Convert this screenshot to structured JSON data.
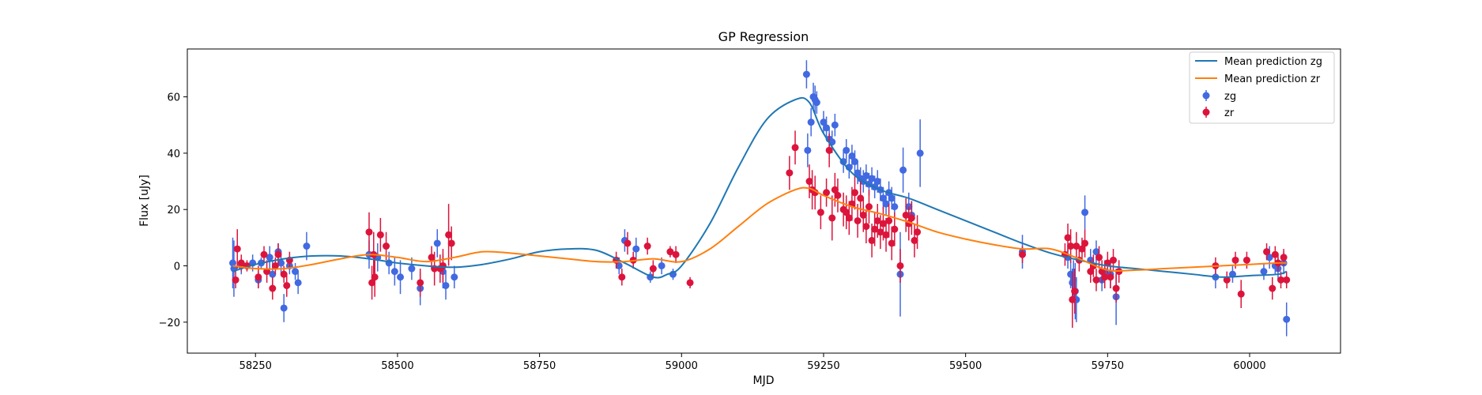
{
  "chart_data": {
    "type": "scatter",
    "title": "GP Regression",
    "xlabel": "MJD",
    "ylabel": "Flux [uJy]",
    "xlim": [
      58130,
      60160
    ],
    "ylim": [
      -31,
      77
    ],
    "xticks": [
      58250,
      58500,
      58750,
      59000,
      59250,
      59500,
      59750,
      60000
    ],
    "yticks": [
      -20,
      0,
      20,
      40,
      60
    ],
    "xtick_labels": [
      "58250",
      "58500",
      "58750",
      "59000",
      "59250",
      "59500",
      "59750",
      "60000"
    ],
    "ytick_labels": [
      "−20",
      "0",
      "20",
      "40",
      "60"
    ],
    "legend": {
      "placement": "top-right",
      "entries": [
        "Mean prediction zg",
        "Mean prediction zr",
        "zg",
        "zr"
      ]
    },
    "lines": [
      {
        "name": "Mean prediction zg",
        "color": "#1f77b4",
        "x": [
          58210,
          58250,
          58300,
          58350,
          58400,
          58450,
          58500,
          58550,
          58600,
          58650,
          58700,
          58750,
          58800,
          58850,
          58900,
          58950,
          58975,
          59000,
          59050,
          59100,
          59150,
          59200,
          59225,
          59250,
          59300,
          59350,
          59400,
          59450,
          59500,
          59550,
          59600,
          59650,
          59700,
          59750,
          59800,
          59850,
          59900,
          59950,
          60000,
          60050,
          60065
        ],
        "y": [
          -2,
          0.5,
          2.5,
          3.5,
          3.5,
          2.5,
          1,
          0,
          -0.5,
          0.5,
          2.5,
          5,
          6,
          5.5,
          1,
          -4,
          -3,
          0,
          15,
          35,
          52,
          59,
          58,
          47,
          33,
          27,
          24,
          20,
          16,
          12,
          8,
          4.5,
          2,
          0,
          -1,
          -2,
          -3,
          -4,
          -3.5,
          -3,
          -2
        ]
      },
      {
        "name": "Mean prediction zr",
        "color": "#ff7f0e",
        "x": [
          58210,
          58250,
          58300,
          58350,
          58400,
          58450,
          58500,
          58550,
          58600,
          58650,
          58700,
          58750,
          58800,
          58850,
          58900,
          58950,
          59000,
          59050,
          59100,
          59150,
          59200,
          59225,
          59250,
          59300,
          59350,
          59400,
          59450,
          59500,
          59550,
          59600,
          59650,
          59700,
          59750,
          59800,
          59850,
          59900,
          59950,
          60000,
          60050,
          60065
        ],
        "y": [
          0,
          -1,
          -1,
          0.5,
          2.5,
          4,
          3,
          1.5,
          3,
          5,
          4.5,
          3.5,
          2.5,
          1.5,
          1.5,
          2.5,
          1.5,
          6,
          14,
          22,
          27,
          27.5,
          25,
          21,
          18.5,
          15.5,
          12,
          9.5,
          7.5,
          6,
          6,
          2.5,
          -1.5,
          -1.5,
          -1,
          -0.5,
          0,
          0.5,
          1,
          1
        ]
      }
    ],
    "series": [
      {
        "name": "zg",
        "color": "#4169e1",
        "points": [
          [
            58210,
            1,
            9
          ],
          [
            58212,
            -1,
            10
          ],
          [
            58225,
            0,
            3
          ],
          [
            58245,
            1,
            3
          ],
          [
            58255,
            -5,
            3
          ],
          [
            58260,
            1,
            2
          ],
          [
            58275,
            3,
            4
          ],
          [
            58280,
            -3,
            5
          ],
          [
            58290,
            5,
            3
          ],
          [
            58295,
            1,
            4
          ],
          [
            58300,
            -15,
            5
          ],
          [
            58310,
            0,
            3
          ],
          [
            58320,
            -2,
            3
          ],
          [
            58325,
            -6,
            4
          ],
          [
            58340,
            7,
            5
          ],
          [
            58450,
            4,
            5
          ],
          [
            58465,
            3,
            5
          ],
          [
            58485,
            1,
            4
          ],
          [
            58495,
            -2,
            5
          ],
          [
            58505,
            -4,
            6
          ],
          [
            58525,
            -1,
            4
          ],
          [
            58540,
            -8,
            6
          ],
          [
            58570,
            8,
            5
          ],
          [
            58580,
            -2,
            6
          ],
          [
            58585,
            -7,
            5
          ],
          [
            58600,
            -4,
            4
          ],
          [
            58890,
            0,
            3
          ],
          [
            58900,
            9,
            4
          ],
          [
            58920,
            6,
            4
          ],
          [
            58945,
            -4,
            2
          ],
          [
            58965,
            0,
            3
          ],
          [
            58985,
            -3,
            2
          ],
          [
            59220,
            68,
            5
          ],
          [
            59222,
            41,
            6
          ],
          [
            59228,
            51,
            5
          ],
          [
            59232,
            60,
            5
          ],
          [
            59235,
            59,
            5
          ],
          [
            59238,
            58,
            4
          ],
          [
            59250,
            51,
            4
          ],
          [
            59255,
            49,
            4
          ],
          [
            59260,
            45,
            4
          ],
          [
            59265,
            44,
            4
          ],
          [
            59270,
            50,
            4
          ],
          [
            59285,
            37,
            4
          ],
          [
            59290,
            41,
            4
          ],
          [
            59295,
            35,
            4
          ],
          [
            59300,
            39,
            4
          ],
          [
            59305,
            37,
            4
          ],
          [
            59310,
            33,
            4
          ],
          [
            59315,
            31,
            4
          ],
          [
            59320,
            30,
            4
          ],
          [
            59325,
            32,
            4
          ],
          [
            59330,
            29,
            4
          ],
          [
            59335,
            31,
            4
          ],
          [
            59340,
            28,
            4
          ],
          [
            59345,
            30,
            4
          ],
          [
            59350,
            27,
            4
          ],
          [
            59355,
            24,
            4
          ],
          [
            59360,
            22,
            4
          ],
          [
            59365,
            26,
            4
          ],
          [
            59370,
            24,
            4
          ],
          [
            59375,
            21,
            4
          ],
          [
            59385,
            -3,
            15
          ],
          [
            59390,
            34,
            8
          ],
          [
            59400,
            21,
            5
          ],
          [
            59405,
            18,
            5
          ],
          [
            59420,
            40,
            12
          ],
          [
            59600,
            5,
            6
          ],
          [
            59680,
            3,
            4
          ],
          [
            59685,
            -3,
            5
          ],
          [
            59688,
            -6,
            5
          ],
          [
            59690,
            -5,
            7
          ],
          [
            59693,
            -9,
            10
          ],
          [
            59695,
            -12,
            8
          ],
          [
            59710,
            19,
            6
          ],
          [
            59720,
            2,
            4
          ],
          [
            59730,
            5,
            4
          ],
          [
            59740,
            -5,
            4
          ],
          [
            59745,
            -2,
            4
          ],
          [
            59755,
            -3,
            5
          ],
          [
            59765,
            -11,
            10
          ],
          [
            59940,
            -4,
            4
          ],
          [
            59970,
            -3,
            3
          ],
          [
            60025,
            -2,
            3
          ],
          [
            60035,
            3,
            4
          ],
          [
            60045,
            0,
            3
          ],
          [
            60050,
            -1,
            4
          ],
          [
            60060,
            1,
            4
          ],
          [
            60065,
            -19,
            6
          ]
        ]
      },
      {
        "name": "zr",
        "color": "#dc143c",
        "points": [
          [
            58215,
            -5,
            3
          ],
          [
            58218,
            6,
            7
          ],
          [
            58225,
            1,
            3
          ],
          [
            58235,
            0,
            2
          ],
          [
            58255,
            -4,
            4
          ],
          [
            58265,
            4,
            3
          ],
          [
            58270,
            -2,
            4
          ],
          [
            58280,
            -8,
            4
          ],
          [
            58285,
            0,
            3
          ],
          [
            58290,
            4,
            4
          ],
          [
            58300,
            -3,
            3
          ],
          [
            58305,
            -7,
            4
          ],
          [
            58310,
            2,
            3
          ],
          [
            58450,
            12,
            7
          ],
          [
            58455,
            -6,
            6
          ],
          [
            58458,
            4,
            8
          ],
          [
            58460,
            -4,
            7
          ],
          [
            58470,
            11,
            6
          ],
          [
            58480,
            7,
            5
          ],
          [
            58540,
            -6,
            5
          ],
          [
            58560,
            3,
            4
          ],
          [
            58565,
            -1,
            6
          ],
          [
            58575,
            -1,
            5
          ],
          [
            58580,
            0,
            6
          ],
          [
            58590,
            11,
            11
          ],
          [
            58595,
            8,
            6
          ],
          [
            58885,
            2,
            3
          ],
          [
            58895,
            -4,
            3
          ],
          [
            58905,
            8,
            4
          ],
          [
            58915,
            2,
            3
          ],
          [
            58940,
            7,
            3
          ],
          [
            58950,
            -1,
            3
          ],
          [
            58980,
            5,
            2
          ],
          [
            58990,
            4,
            3
          ],
          [
            59015,
            -6,
            2
          ],
          [
            59190,
            33,
            6
          ],
          [
            59200,
            42,
            6
          ],
          [
            59225,
            30,
            6
          ],
          [
            59230,
            27,
            7
          ],
          [
            59235,
            26,
            6
          ],
          [
            59245,
            19,
            6
          ],
          [
            59255,
            26,
            5
          ],
          [
            59260,
            41,
            6
          ],
          [
            59265,
            17,
            8
          ],
          [
            59270,
            27,
            6
          ],
          [
            59275,
            25,
            6
          ],
          [
            59285,
            20,
            6
          ],
          [
            59290,
            19,
            6
          ],
          [
            59295,
            17,
            6
          ],
          [
            59300,
            22,
            6
          ],
          [
            59305,
            26,
            6
          ],
          [
            59310,
            16,
            6
          ],
          [
            59315,
            24,
            6
          ],
          [
            59320,
            18,
            6
          ],
          [
            59325,
            14,
            6
          ],
          [
            59330,
            21,
            6
          ],
          [
            59335,
            9,
            6
          ],
          [
            59340,
            13,
            6
          ],
          [
            59345,
            16,
            6
          ],
          [
            59350,
            12,
            6
          ],
          [
            59355,
            15,
            6
          ],
          [
            59360,
            11,
            6
          ],
          [
            59365,
            16,
            6
          ],
          [
            59370,
            8,
            6
          ],
          [
            59375,
            13,
            6
          ],
          [
            59385,
            0,
            6
          ],
          [
            59395,
            18,
            6
          ],
          [
            59400,
            15,
            6
          ],
          [
            59405,
            17,
            6
          ],
          [
            59410,
            9,
            6
          ],
          [
            59415,
            12,
            6
          ],
          [
            59600,
            4,
            3
          ],
          [
            59675,
            4,
            4
          ],
          [
            59680,
            10,
            5
          ],
          [
            59685,
            7,
            6
          ],
          [
            59688,
            -12,
            10
          ],
          [
            59692,
            -9,
            8
          ],
          [
            59695,
            7,
            5
          ],
          [
            59700,
            2,
            4
          ],
          [
            59705,
            6,
            4
          ],
          [
            59710,
            8,
            5
          ],
          [
            59720,
            -2,
            4
          ],
          [
            59725,
            0,
            4
          ],
          [
            59730,
            -5,
            4
          ],
          [
            59735,
            3,
            4
          ],
          [
            59740,
            -2,
            4
          ],
          [
            59745,
            -4,
            4
          ],
          [
            59750,
            1,
            4
          ],
          [
            59755,
            -4,
            4
          ],
          [
            59760,
            2,
            4
          ],
          [
            59765,
            -8,
            5
          ],
          [
            59770,
            -2,
            4
          ],
          [
            59940,
            0,
            3
          ],
          [
            59960,
            -5,
            3
          ],
          [
            59975,
            2,
            3
          ],
          [
            59985,
            -10,
            5
          ],
          [
            59995,
            2,
            3
          ],
          [
            60030,
            5,
            3
          ],
          [
            60040,
            -8,
            4
          ],
          [
            60045,
            4,
            3
          ],
          [
            60050,
            1,
            3
          ],
          [
            60055,
            -5,
            3
          ],
          [
            60060,
            3,
            3
          ],
          [
            60065,
            -5,
            3
          ]
        ]
      }
    ]
  }
}
